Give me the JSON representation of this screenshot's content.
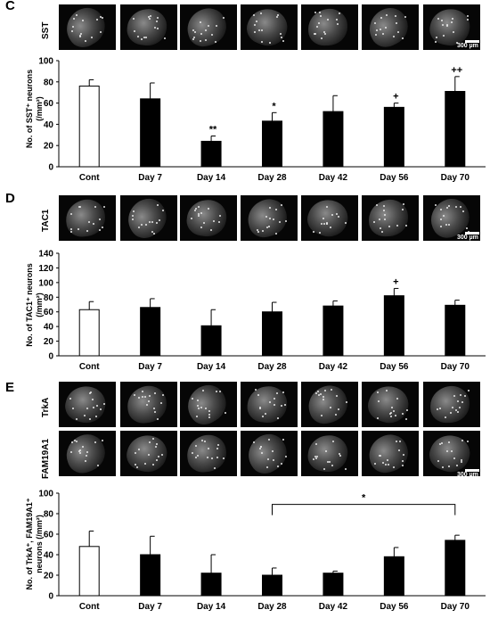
{
  "panels": [
    {
      "letter": "C",
      "stains": [
        "SST"
      ],
      "scalebar_label": "300 µm"
    },
    {
      "letter": "D",
      "stains": [
        "TAC1"
      ],
      "scalebar_label": "300 µm"
    },
    {
      "letter": "E",
      "stains": [
        "TrkA",
        "FAM19A1"
      ],
      "scalebar_label": "300 µm"
    }
  ],
  "chart_data": [
    {
      "type": "bar",
      "categories": [
        "Cont",
        "Day 7",
        "Day 14",
        "Day 28",
        "Day 42",
        "Day 56",
        "Day 70"
      ],
      "values": [
        76,
        64,
        24,
        43,
        52,
        56,
        71
      ],
      "errors": [
        6,
        15,
        5,
        8,
        15,
        4,
        14
      ],
      "annotations": [
        "",
        "",
        "**",
        "*",
        "",
        "+",
        "++"
      ],
      "ylabel_lines": [
        "No. of SST⁺ neurons",
        "(/mm²)"
      ],
      "ylim": [
        0,
        100
      ],
      "yticks": [
        0,
        20,
        40,
        60,
        80,
        100
      ],
      "bar_colors": [
        "#ffffff",
        "#000000",
        "#000000",
        "#000000",
        "#000000",
        "#000000",
        "#000000"
      ],
      "bracket": null
    },
    {
      "type": "bar",
      "categories": [
        "Cont",
        "Day 7",
        "Day 14",
        "Day 28",
        "Day 42",
        "Day 56",
        "Day 70"
      ],
      "values": [
        63,
        66,
        41,
        60,
        68,
        82,
        69
      ],
      "errors": [
        11,
        12,
        22,
        13,
        7,
        10,
        7
      ],
      "annotations": [
        "",
        "",
        "",
        "",
        "",
        "+",
        ""
      ],
      "ylabel_lines": [
        "No. of TAC1⁺ neurons",
        "(/mm²)"
      ],
      "ylim": [
        0,
        140
      ],
      "yticks": [
        0,
        20,
        40,
        60,
        80,
        100,
        120,
        140
      ],
      "bar_colors": [
        "#ffffff",
        "#000000",
        "#000000",
        "#000000",
        "#000000",
        "#000000",
        "#000000"
      ],
      "bracket": null
    },
    {
      "type": "bar",
      "categories": [
        "Cont",
        "Day 7",
        "Day 14",
        "Day 28",
        "Day 42",
        "Day 56",
        "Day 70"
      ],
      "values": [
        48,
        40,
        22,
        20,
        22,
        38,
        54
      ],
      "errors": [
        15,
        18,
        18,
        7,
        2,
        9,
        5
      ],
      "annotations": [
        "",
        "",
        "",
        "",
        "",
        "",
        ""
      ],
      "ylabel_lines": [
        "No. of TrkA⁺, FAM19A1⁺",
        "neurons (/mm²)"
      ],
      "ylim": [
        0,
        100
      ],
      "yticks": [
        0,
        20,
        40,
        60,
        80,
        100
      ],
      "bar_colors": [
        "#ffffff",
        "#000000",
        "#000000",
        "#000000",
        "#000000",
        "#000000",
        "#000000"
      ],
      "bracket": {
        "from": "Day 28",
        "to": "Day 70",
        "label": "*",
        "y": 89
      }
    }
  ]
}
